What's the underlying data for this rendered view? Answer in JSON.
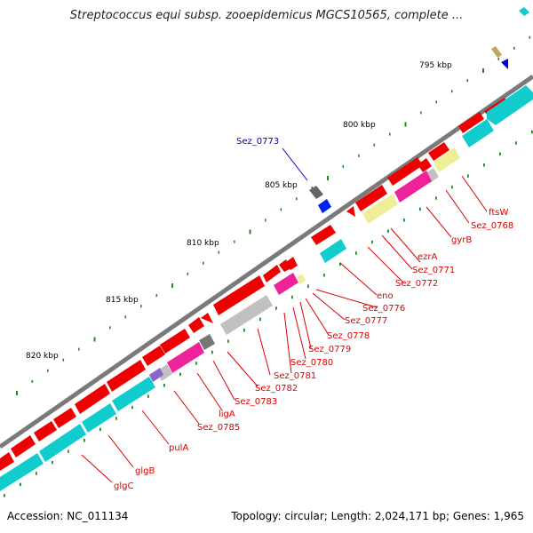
{
  "title": "Streptococcus equi subsp. zooepidemicus MGCS10565, complete ...",
  "footer": {
    "accession": "Accession: NC_011134",
    "summary": "Topology: circular; Length: 2,024,171 bp; Genes: 1,965"
  },
  "scale_labels": [
    "795 kbp",
    "800 kbp",
    "805 kbp",
    "810 kbp",
    "815 kbp",
    "820 kbp"
  ],
  "gene_labels": [
    "Sez_0773",
    "ftsW",
    "Sez_0768",
    "gyrB",
    "ezrA",
    "Sez_0771",
    "Sez_0772",
    "eno",
    "Sez_0776",
    "Sez_0777",
    "Sez_0778",
    "Sez_0779",
    "Sez_0780",
    "Sez_0781",
    "Sez_0782",
    "Sez_0783",
    "ligA",
    "Sez_0785",
    "pulA",
    "glgB",
    "glgC"
  ],
  "colors": {
    "gene_red": "#ee0000",
    "gene_cyan": "#11cccc",
    "gene_magenta": "#ee2299",
    "gene_yellow": "#eeee99",
    "gene_gray": "#c0c0c0",
    "backbone": "#808080",
    "label_red": "#dd0000",
    "label_blue": "#0000cc",
    "tick_green": "#228822"
  }
}
